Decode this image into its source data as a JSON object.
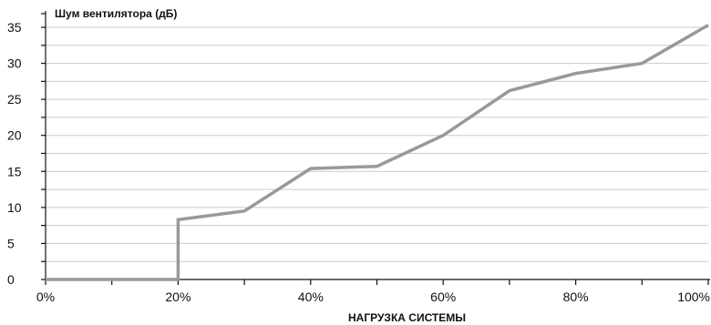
{
  "chart_data": {
    "type": "line",
    "title": "",
    "ylabel": "Шум вентилятора (дБ)",
    "xlabel": "НАГРУЗКА СИСТЕМЫ",
    "x_ticks": [
      "0%",
      "20%",
      "40%",
      "60%",
      "80%",
      "100%"
    ],
    "y_ticks": [
      "0",
      "5",
      "10",
      "15",
      "20",
      "25",
      "30",
      "35"
    ],
    "xlim": [
      0,
      100
    ],
    "ylim": [
      0,
      35
    ],
    "grid": true,
    "colors": {
      "line": "#999999",
      "grid": "#cccccc",
      "axis": "#111111"
    },
    "series": [
      {
        "x": [
          0,
          20,
          20,
          30,
          40,
          50,
          60,
          70,
          80,
          90,
          100
        ],
        "values": [
          0,
          0,
          8.3,
          9.5,
          15.4,
          15.7,
          20.0,
          26.2,
          28.6,
          30.0,
          35.3
        ]
      }
    ]
  }
}
